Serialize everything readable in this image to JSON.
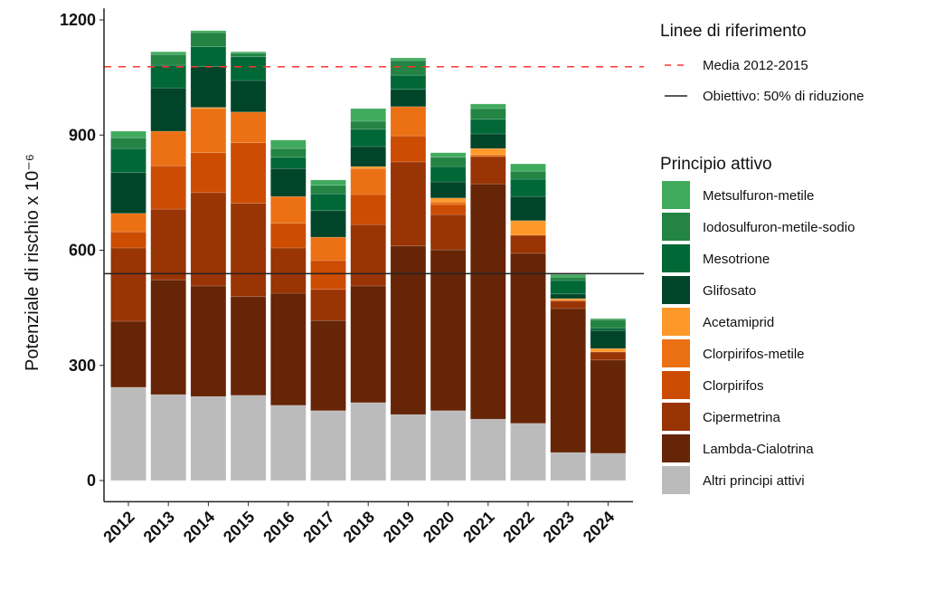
{
  "chart_data": {
    "type": "bar",
    "stacked": true,
    "title": "",
    "xlabel": "",
    "ylabel": "Potenziale di rischio x 10⁻⁶",
    "ylim": [
      -55,
      1230
    ],
    "yticks": [
      0,
      300,
      600,
      900,
      1200
    ],
    "grid": false,
    "legend_placement": "right",
    "categories": [
      "2012",
      "2013",
      "2014",
      "2015",
      "2016",
      "2017",
      "2018",
      "2019",
      "2020",
      "2021",
      "2022",
      "2023",
      "2024"
    ],
    "series_legend_title": "Principio attivo",
    "series": [
      {
        "name": "Altri principi attivi",
        "color": "#bbbbbb",
        "values": [
          243,
          224,
          219,
          222,
          196,
          182,
          203,
          172,
          182,
          160,
          149,
          73,
          71
        ]
      },
      {
        "name": "Lambda-Cialotrina",
        "color": "#662506",
        "values": [
          172,
          299,
          288,
          257,
          292,
          235,
          304,
          439,
          419,
          613,
          443,
          375,
          243
        ]
      },
      {
        "name": "Cipermetrina",
        "color": "#993404",
        "values": [
          191,
          184,
          243,
          243,
          118,
          81,
          160,
          219,
          92,
          71,
          47,
          19,
          21
        ]
      },
      {
        "name": "Clorpirifos",
        "color": "#cc4c02",
        "values": [
          42,
          113,
          104,
          158,
          64,
          75,
          78,
          68,
          26,
          0,
          0,
          3,
          0
        ]
      },
      {
        "name": "Clorpirifos-metile",
        "color": "#ec7014",
        "values": [
          48,
          90,
          115,
          80,
          70,
          61,
          68,
          76,
          7,
          5,
          0,
          0,
          0
        ]
      },
      {
        "name": "Acetamiprid",
        "color": "#fe9929",
        "values": [
          0,
          0,
          3,
          0,
          0,
          0,
          5,
          0,
          10,
          16,
          38,
          4,
          9
        ]
      },
      {
        "name": "Glifosato",
        "color": "#004529",
        "values": [
          106,
          113,
          106,
          82,
          73,
          69,
          52,
          45,
          42,
          38,
          63,
          12,
          47
        ]
      },
      {
        "name": "Mesotrione",
        "color": "#006837",
        "values": [
          63,
          59,
          52,
          62,
          29,
          44,
          45,
          37,
          40,
          38,
          45,
          35,
          7
        ]
      },
      {
        "name": "Iodosulfuron-metile-sodio",
        "color": "#238443",
        "values": [
          28,
          28,
          37,
          9,
          23,
          22,
          21,
          38,
          24,
          28,
          21,
          9,
          21
        ]
      },
      {
        "name": "Metsulfuron-metile",
        "color": "#41ab5d",
        "values": [
          17,
          7,
          5,
          4,
          22,
          14,
          33,
          7,
          12,
          12,
          19,
          7,
          3
        ]
      }
    ],
    "reference_lines_title": "Linee di riferimento",
    "reference_lines": [
      {
        "name": "Media 2012-2015",
        "value": 1078,
        "color": "#ff3333",
        "style": "dashed"
      },
      {
        "name": "Obiettivo: 50% di riduzione",
        "value": 539,
        "color": "#222222",
        "style": "solid"
      }
    ]
  }
}
